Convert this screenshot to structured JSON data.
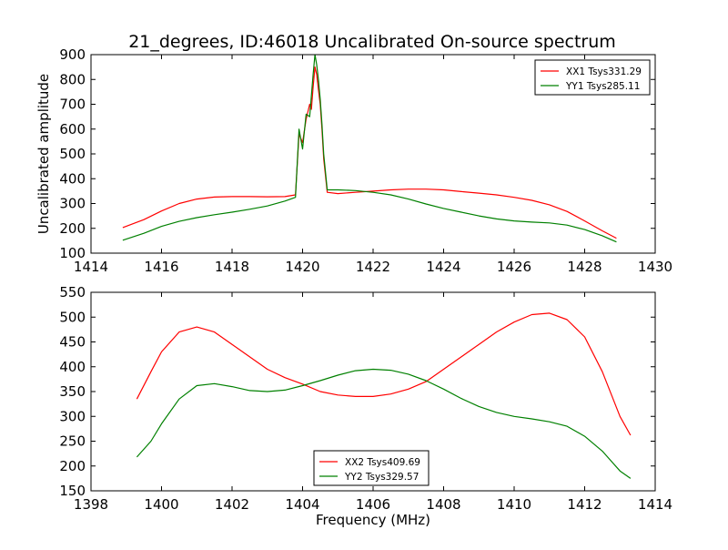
{
  "figure_title": "21_degrees, ID:46018 Uncalibrated On-source spectrum",
  "chart_data": [
    {
      "type": "line",
      "title": "21_degrees, ID:46018 Uncalibrated On-source spectrum",
      "xlabel": "",
      "ylabel": "Uncalibrated amplitude",
      "xlim": [
        1414,
        1430
      ],
      "ylim": [
        100,
        900
      ],
      "xticks": [
        1414,
        1416,
        1418,
        1420,
        1422,
        1424,
        1426,
        1428,
        1430
      ],
      "yticks": [
        100,
        200,
        300,
        400,
        500,
        600,
        700,
        800,
        900
      ],
      "legend_position": "top-right",
      "grid": false,
      "series": [
        {
          "name": "XX1 Tsys331.29",
          "color": "#ff0000",
          "points": [
            [
              1414.9,
              203
            ],
            [
              1415.5,
              235
            ],
            [
              1416,
              270
            ],
            [
              1416.5,
              300
            ],
            [
              1417,
              318
            ],
            [
              1417.5,
              326
            ],
            [
              1418,
              328
            ],
            [
              1418.5,
              328
            ],
            [
              1419,
              327
            ],
            [
              1419.5,
              328
            ],
            [
              1419.8,
              335
            ],
            [
              1419.9,
              580
            ],
            [
              1420.0,
              545
            ],
            [
              1420.1,
              640
            ],
            [
              1420.2,
              700
            ],
            [
              1420.25,
              680
            ],
            [
              1420.3,
              770
            ],
            [
              1420.35,
              850
            ],
            [
              1420.4,
              820
            ],
            [
              1420.45,
              760
            ],
            [
              1420.5,
              700
            ],
            [
              1420.55,
              600
            ],
            [
              1420.6,
              480
            ],
            [
              1420.7,
              345
            ],
            [
              1421,
              340
            ],
            [
              1421.5,
              345
            ],
            [
              1422,
              350
            ],
            [
              1422.5,
              355
            ],
            [
              1423,
              358
            ],
            [
              1423.5,
              358
            ],
            [
              1424,
              355
            ],
            [
              1424.5,
              348
            ],
            [
              1425,
              342
            ],
            [
              1425.5,
              335
            ],
            [
              1426,
              325
            ],
            [
              1426.5,
              313
            ],
            [
              1427,
              295
            ],
            [
              1427.5,
              268
            ],
            [
              1428,
              230
            ],
            [
              1428.5,
              190
            ],
            [
              1428.9,
              160
            ]
          ]
        },
        {
          "name": "YY1 Tsys285.11",
          "color": "#008000",
          "points": [
            [
              1414.9,
              152
            ],
            [
              1415.5,
              180
            ],
            [
              1416,
              208
            ],
            [
              1416.5,
              228
            ],
            [
              1417,
              243
            ],
            [
              1417.5,
              255
            ],
            [
              1418,
              265
            ],
            [
              1418.5,
              277
            ],
            [
              1419,
              290
            ],
            [
              1419.5,
              310
            ],
            [
              1419.8,
              325
            ],
            [
              1419.9,
              600
            ],
            [
              1420.0,
              520
            ],
            [
              1420.1,
              660
            ],
            [
              1420.2,
              650
            ],
            [
              1420.3,
              820
            ],
            [
              1420.35,
              900
            ],
            [
              1420.4,
              860
            ],
            [
              1420.45,
              800
            ],
            [
              1420.5,
              720
            ],
            [
              1420.55,
              620
            ],
            [
              1420.6,
              500
            ],
            [
              1420.7,
              355
            ],
            [
              1421,
              355
            ],
            [
              1421.5,
              352
            ],
            [
              1422,
              345
            ],
            [
              1422.5,
              335
            ],
            [
              1423,
              318
            ],
            [
              1423.5,
              298
            ],
            [
              1424,
              280
            ],
            [
              1424.5,
              265
            ],
            [
              1425,
              250
            ],
            [
              1425.5,
              238
            ],
            [
              1426,
              230
            ],
            [
              1426.5,
              225
            ],
            [
              1427,
              222
            ],
            [
              1427.5,
              213
            ],
            [
              1428,
              195
            ],
            [
              1428.5,
              170
            ],
            [
              1428.9,
              145
            ]
          ]
        }
      ]
    },
    {
      "type": "line",
      "title": "",
      "xlabel": "Frequency (MHz)",
      "ylabel": "",
      "xlim": [
        1398,
        1414
      ],
      "ylim": [
        150,
        550
      ],
      "xticks": [
        1398,
        1400,
        1402,
        1404,
        1406,
        1408,
        1410,
        1412,
        1414
      ],
      "yticks": [
        150,
        200,
        250,
        300,
        350,
        400,
        450,
        500,
        550
      ],
      "legend_position": "bottom-center",
      "grid": false,
      "series": [
        {
          "name": "XX2 Tsys409.69",
          "color": "#ff0000",
          "points": [
            [
              1399.3,
              335
            ],
            [
              1399.7,
              390
            ],
            [
              1400,
              430
            ],
            [
              1400.5,
              470
            ],
            [
              1401,
              480
            ],
            [
              1401.5,
              470
            ],
            [
              1402,
              445
            ],
            [
              1402.5,
              420
            ],
            [
              1403,
              395
            ],
            [
              1403.5,
              378
            ],
            [
              1404,
              365
            ],
            [
              1404.5,
              350
            ],
            [
              1405,
              343
            ],
            [
              1405.5,
              340
            ],
            [
              1406,
              340
            ],
            [
              1406.5,
              345
            ],
            [
              1407,
              355
            ],
            [
              1407.5,
              370
            ],
            [
              1408,
              395
            ],
            [
              1408.5,
              420
            ],
            [
              1409,
              445
            ],
            [
              1409.5,
              470
            ],
            [
              1410,
              490
            ],
            [
              1410.5,
              505
            ],
            [
              1411,
              508
            ],
            [
              1411.5,
              495
            ],
            [
              1412,
              460
            ],
            [
              1412.5,
              390
            ],
            [
              1413,
              300
            ],
            [
              1413.3,
              262
            ]
          ]
        },
        {
          "name": "YY2 Tsys329.57",
          "color": "#008000",
          "points": [
            [
              1399.3,
              218
            ],
            [
              1399.7,
              250
            ],
            [
              1400,
              285
            ],
            [
              1400.5,
              335
            ],
            [
              1401,
              362
            ],
            [
              1401.5,
              366
            ],
            [
              1402,
              360
            ],
            [
              1402.5,
              352
            ],
            [
              1403,
              350
            ],
            [
              1403.5,
              353
            ],
            [
              1404,
              362
            ],
            [
              1404.5,
              372
            ],
            [
              1405,
              383
            ],
            [
              1405.5,
              392
            ],
            [
              1406,
              395
            ],
            [
              1406.5,
              393
            ],
            [
              1407,
              385
            ],
            [
              1407.5,
              372
            ],
            [
              1408,
              355
            ],
            [
              1408.5,
              336
            ],
            [
              1409,
              320
            ],
            [
              1409.5,
              308
            ],
            [
              1410,
              300
            ],
            [
              1410.5,
              295
            ],
            [
              1411,
              289
            ],
            [
              1411.5,
              280
            ],
            [
              1412,
              260
            ],
            [
              1412.5,
              230
            ],
            [
              1413,
              190
            ],
            [
              1413.3,
              175
            ]
          ]
        }
      ]
    }
  ]
}
